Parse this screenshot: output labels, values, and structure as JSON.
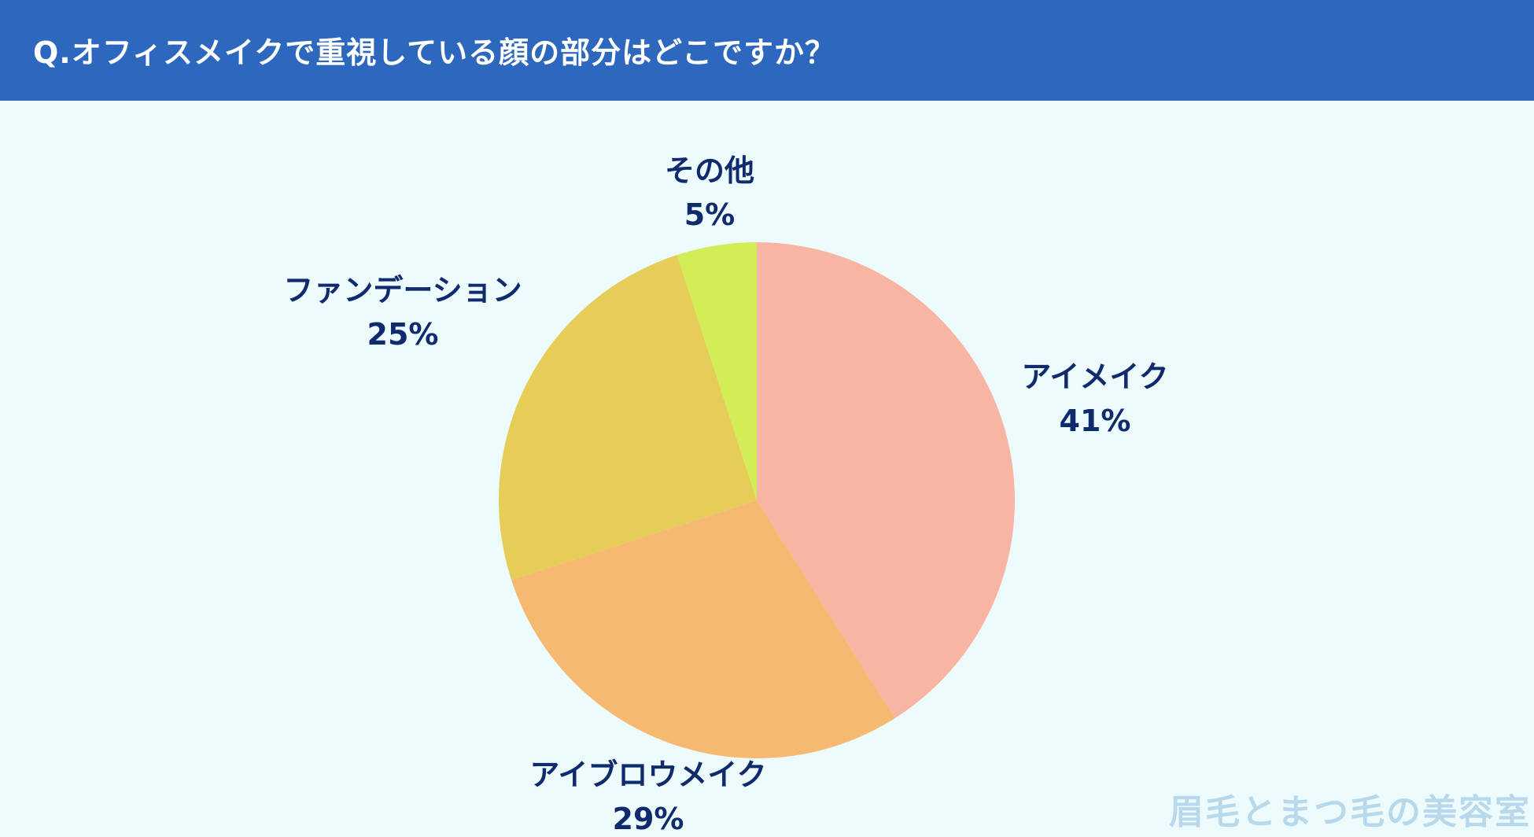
{
  "header": {
    "title": "Q.オフィスメイクで重視している顔の部分はどこですか？"
  },
  "colors": {
    "header_bg": "#2d68be",
    "background": "#eefbfd",
    "label_text": "#102a6e"
  },
  "chart_data": {
    "type": "pie",
    "start": "12 o'clock",
    "direction": "clockwise",
    "slices": [
      {
        "label": "アイメイク",
        "value": 41,
        "value_label": "41%",
        "color": "#f8b5a4"
      },
      {
        "label": "アイブロウメイク",
        "value": 29,
        "value_label": "29%",
        "color": "#f5b972"
      },
      {
        "label": "ファンデーション",
        "value": 25,
        "value_label": "25%",
        "color": "#e5cd58"
      },
      {
        "label": "その他",
        "value": 5,
        "value_label": "5%",
        "color": "#d2ed55"
      }
    ]
  },
  "watermark": {
    "text": "眉毛とまつ毛の美容室"
  }
}
